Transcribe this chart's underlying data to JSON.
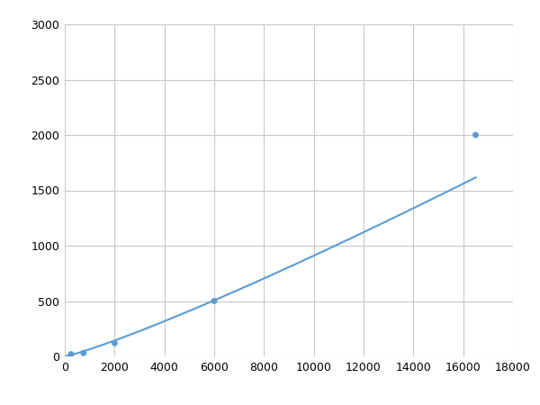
{
  "x": [
    250,
    750,
    2000,
    6000,
    16500
  ],
  "y": [
    20,
    30,
    120,
    500,
    2000
  ],
  "xlim": [
    0,
    18000
  ],
  "ylim": [
    0,
    3000
  ],
  "xticks": [
    0,
    2000,
    4000,
    6000,
    8000,
    10000,
    12000,
    14000,
    16000,
    18000
  ],
  "yticks": [
    0,
    500,
    1000,
    1500,
    2000,
    2500,
    3000
  ],
  "line_color": "#5B9BD5",
  "marker_color": "#5B9BD5",
  "marker_size": 5,
  "line_width": 1.5,
  "grid_color": "#C8C8C8",
  "background_color": "#FFFFFF",
  "tick_label_fontsize": 9,
  "figure_width": 6.0,
  "figure_height": 4.5
}
